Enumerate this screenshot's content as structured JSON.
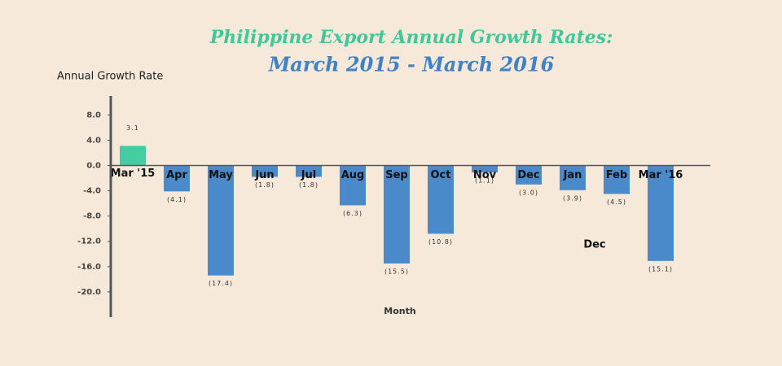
{
  "chart_data": {
    "type": "bar",
    "title": "Philippine Export Annual Growth Rates:",
    "subtitle": "March 2015 - March 2016",
    "y_label": "Annual Growth Rate",
    "x_label": "Month",
    "annotation": "Dec",
    "categories": [
      "Mar '15",
      "Apr",
      "May",
      "Jun",
      "Jul",
      "Aug",
      "Sep",
      "Oct",
      "Nov",
      "Dec",
      "Jan",
      "Feb",
      "Mar '16"
    ],
    "values": [
      3.1,
      -4.1,
      -17.4,
      -1.8,
      -1.8,
      -6.3,
      -15.5,
      -10.8,
      -1.1,
      -3.0,
      -3.9,
      -4.5,
      -15.1
    ],
    "value_labels": [
      "3.1",
      "(4.1)",
      "(17.4)",
      "(1.8)",
      "(1.8)",
      "(6.3)",
      "(15.5)",
      "(10.8)",
      "(1.1)",
      "(3.0)",
      "(3.9)",
      "(4.5)",
      "(15.1)"
    ],
    "colors": [
      "#45cda2",
      "#4a8acb",
      "#4a8acb",
      "#4a8acb",
      "#4a8acb",
      "#4a8acb",
      "#4a8acb",
      "#4a8acb",
      "#4a8acb",
      "#4a8acb",
      "#4a8acb",
      "#4a8acb",
      "#4a8acb"
    ],
    "ylim": [
      -24,
      11
    ],
    "yticks": [
      {
        "value": 8,
        "label": "8.0"
      },
      {
        "value": 4,
        "label": "4.0"
      },
      {
        "value": 0,
        "label": "0.0"
      },
      {
        "value": -4,
        "label": "-4.0"
      },
      {
        "value": -8,
        "label": "-8.0"
      },
      {
        "value": -12,
        "label": "-12.0"
      },
      {
        "value": -16,
        "label": "-16.0"
      },
      {
        "value": -20,
        "label": "-20.0"
      }
    ]
  }
}
